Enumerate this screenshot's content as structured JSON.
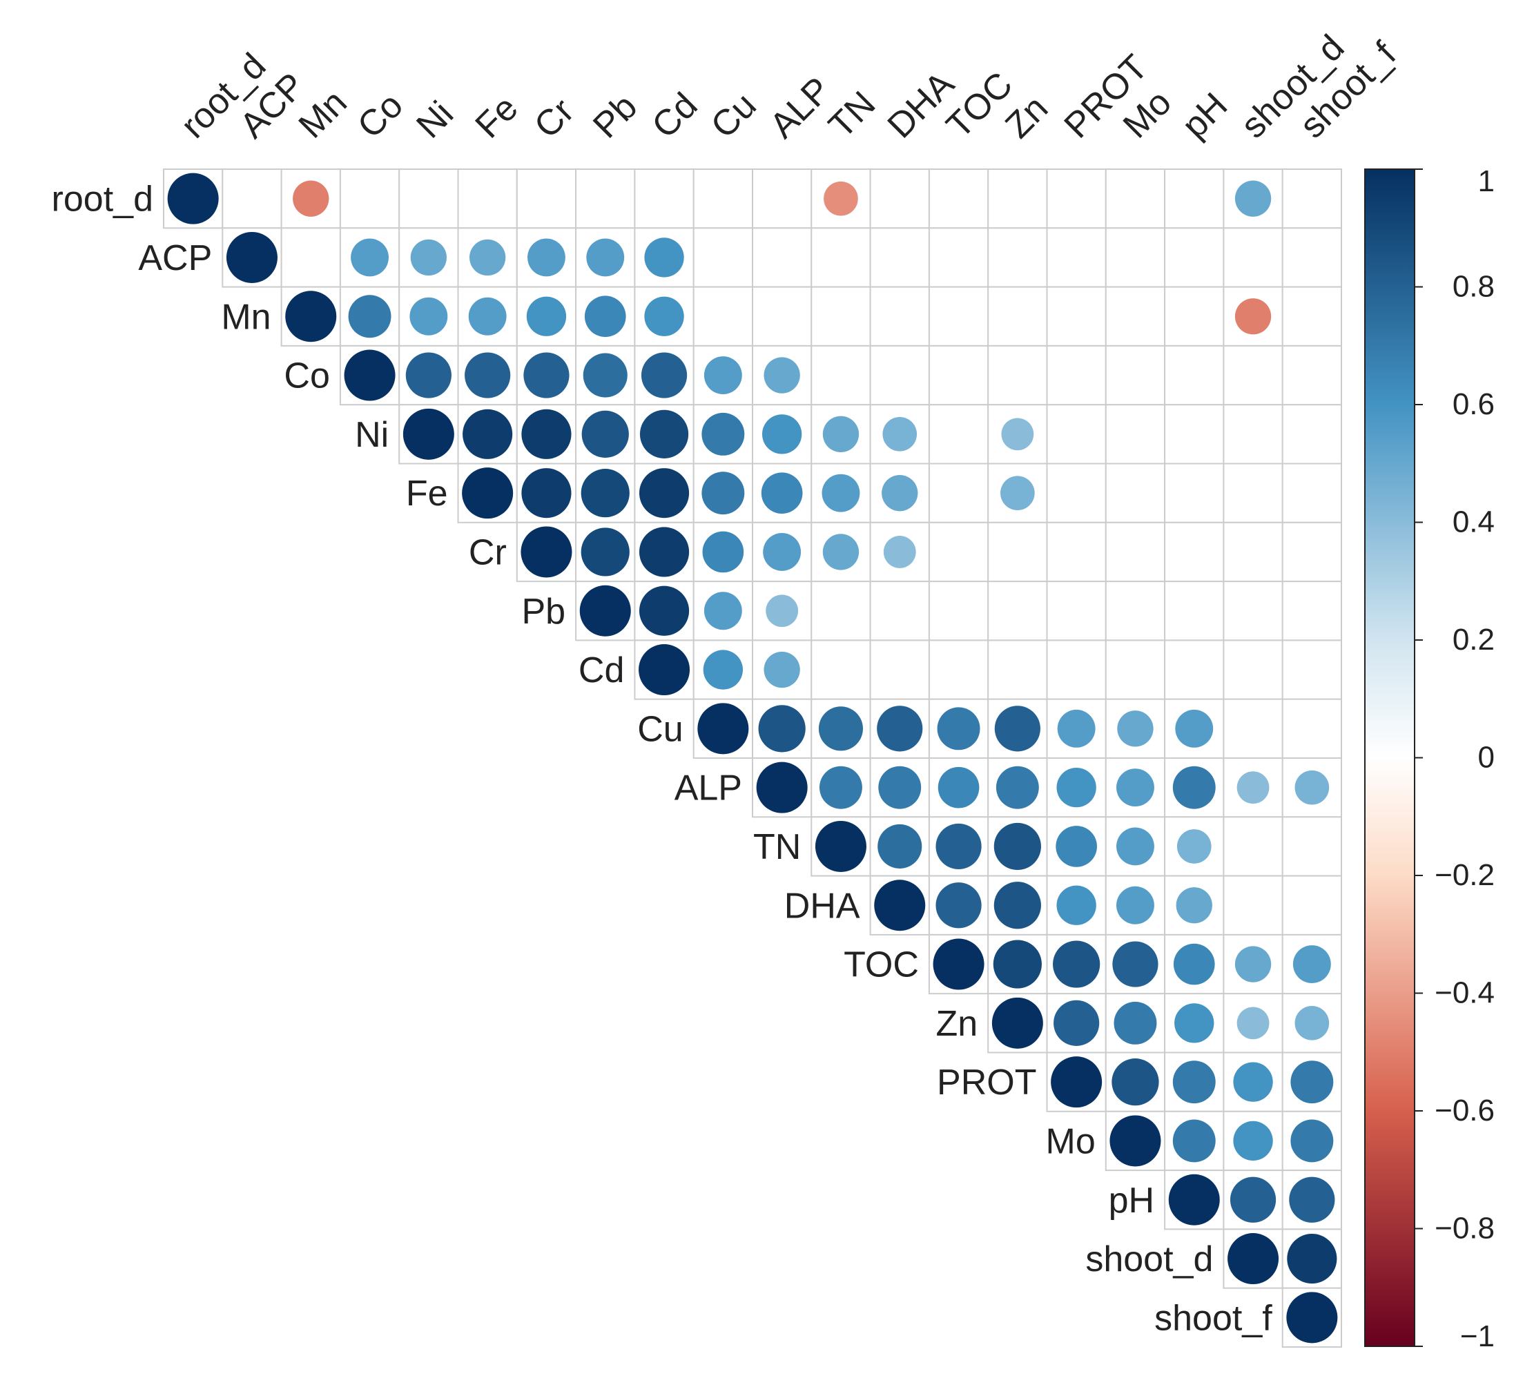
{
  "chart_data": {
    "type": "heatmap",
    "style": "corrplot-circle-upper",
    "variables": [
      "root_d",
      "ACP",
      "Mn",
      "Co",
      "Ni",
      "Fe",
      "Cr",
      "Pb",
      "Cd",
      "Cu",
      "ALP",
      "TN",
      "DHA",
      "TOC",
      "Zn",
      "PROT",
      "Mo",
      "pH",
      "shoot_d",
      "shoot_f"
    ],
    "values": [
      {
        "row": "root_d",
        "col": "root_d",
        "r": 1.0
      },
      {
        "row": "root_d",
        "col": "Mn",
        "r": -0.5
      },
      {
        "row": "root_d",
        "col": "TN",
        "r": -0.45
      },
      {
        "row": "root_d",
        "col": "shoot_d",
        "r": 0.5
      },
      {
        "row": "ACP",
        "col": "ACP",
        "r": 1.0
      },
      {
        "row": "ACP",
        "col": "Co",
        "r": 0.55
      },
      {
        "row": "ACP",
        "col": "Ni",
        "r": 0.5
      },
      {
        "row": "ACP",
        "col": "Fe",
        "r": 0.5
      },
      {
        "row": "ACP",
        "col": "Cr",
        "r": 0.55
      },
      {
        "row": "ACP",
        "col": "Pb",
        "r": 0.55
      },
      {
        "row": "ACP",
        "col": "Cd",
        "r": 0.6
      },
      {
        "row": "Mn",
        "col": "Mn",
        "r": 1.0
      },
      {
        "row": "Mn",
        "col": "Co",
        "r": 0.7
      },
      {
        "row": "Mn",
        "col": "Ni",
        "r": 0.55
      },
      {
        "row": "Mn",
        "col": "Fe",
        "r": 0.55
      },
      {
        "row": "Mn",
        "col": "Cr",
        "r": 0.6
      },
      {
        "row": "Mn",
        "col": "Pb",
        "r": 0.65
      },
      {
        "row": "Mn",
        "col": "Cd",
        "r": 0.6
      },
      {
        "row": "Mn",
        "col": "shoot_d",
        "r": -0.5
      },
      {
        "row": "Co",
        "col": "Co",
        "r": 1.0
      },
      {
        "row": "Co",
        "col": "Ni",
        "r": 0.8
      },
      {
        "row": "Co",
        "col": "Fe",
        "r": 0.8
      },
      {
        "row": "Co",
        "col": "Cr",
        "r": 0.8
      },
      {
        "row": "Co",
        "col": "Pb",
        "r": 0.75
      },
      {
        "row": "Co",
        "col": "Cd",
        "r": 0.8
      },
      {
        "row": "Co",
        "col": "Cu",
        "r": 0.55
      },
      {
        "row": "Co",
        "col": "ALP",
        "r": 0.5
      },
      {
        "row": "Ni",
        "col": "Ni",
        "r": 1.0
      },
      {
        "row": "Ni",
        "col": "Fe",
        "r": 0.95
      },
      {
        "row": "Ni",
        "col": "Cr",
        "r": 0.95
      },
      {
        "row": "Ni",
        "col": "Pb",
        "r": 0.85
      },
      {
        "row": "Ni",
        "col": "Cd",
        "r": 0.9
      },
      {
        "row": "Ni",
        "col": "Cu",
        "r": 0.7
      },
      {
        "row": "Ni",
        "col": "ALP",
        "r": 0.6
      },
      {
        "row": "Ni",
        "col": "TN",
        "r": 0.5
      },
      {
        "row": "Ni",
        "col": "DHA",
        "r": 0.45
      },
      {
        "row": "Ni",
        "col": "Zn",
        "r": 0.4
      },
      {
        "row": "Fe",
        "col": "Fe",
        "r": 1.0
      },
      {
        "row": "Fe",
        "col": "Cr",
        "r": 0.95
      },
      {
        "row": "Fe",
        "col": "Pb",
        "r": 0.9
      },
      {
        "row": "Fe",
        "col": "Cd",
        "r": 0.95
      },
      {
        "row": "Fe",
        "col": "Cu",
        "r": 0.7
      },
      {
        "row": "Fe",
        "col": "ALP",
        "r": 0.65
      },
      {
        "row": "Fe",
        "col": "TN",
        "r": 0.55
      },
      {
        "row": "Fe",
        "col": "DHA",
        "r": 0.5
      },
      {
        "row": "Fe",
        "col": "Zn",
        "r": 0.45
      },
      {
        "row": "Cr",
        "col": "Cr",
        "r": 1.0
      },
      {
        "row": "Cr",
        "col": "Pb",
        "r": 0.9
      },
      {
        "row": "Cr",
        "col": "Cd",
        "r": 0.95
      },
      {
        "row": "Cr",
        "col": "Cu",
        "r": 0.65
      },
      {
        "row": "Cr",
        "col": "ALP",
        "r": 0.55
      },
      {
        "row": "Cr",
        "col": "TN",
        "r": 0.5
      },
      {
        "row": "Cr",
        "col": "DHA",
        "r": 0.4
      },
      {
        "row": "Pb",
        "col": "Pb",
        "r": 1.0
      },
      {
        "row": "Pb",
        "col": "Cd",
        "r": 0.95
      },
      {
        "row": "Pb",
        "col": "Cu",
        "r": 0.55
      },
      {
        "row": "Pb",
        "col": "ALP",
        "r": 0.4
      },
      {
        "row": "Cd",
        "col": "Cd",
        "r": 1.0
      },
      {
        "row": "Cd",
        "col": "Cu",
        "r": 0.6
      },
      {
        "row": "Cd",
        "col": "ALP",
        "r": 0.5
      },
      {
        "row": "Cu",
        "col": "Cu",
        "r": 1.0
      },
      {
        "row": "Cu",
        "col": "ALP",
        "r": 0.85
      },
      {
        "row": "Cu",
        "col": "TN",
        "r": 0.75
      },
      {
        "row": "Cu",
        "col": "DHA",
        "r": 0.8
      },
      {
        "row": "Cu",
        "col": "TOC",
        "r": 0.7
      },
      {
        "row": "Cu",
        "col": "Zn",
        "r": 0.8
      },
      {
        "row": "Cu",
        "col": "PROT",
        "r": 0.55
      },
      {
        "row": "Cu",
        "col": "Mo",
        "r": 0.5
      },
      {
        "row": "Cu",
        "col": "pH",
        "r": 0.55
      },
      {
        "row": "ALP",
        "col": "ALP",
        "r": 1.0
      },
      {
        "row": "ALP",
        "col": "TN",
        "r": 0.7
      },
      {
        "row": "ALP",
        "col": "DHA",
        "r": 0.7
      },
      {
        "row": "ALP",
        "col": "TOC",
        "r": 0.65
      },
      {
        "row": "ALP",
        "col": "Zn",
        "r": 0.7
      },
      {
        "row": "ALP",
        "col": "PROT",
        "r": 0.6
      },
      {
        "row": "ALP",
        "col": "Mo",
        "r": 0.55
      },
      {
        "row": "ALP",
        "col": "pH",
        "r": 0.7
      },
      {
        "row": "ALP",
        "col": "shoot_d",
        "r": 0.4
      },
      {
        "row": "ALP",
        "col": "shoot_f",
        "r": 0.45
      },
      {
        "row": "TN",
        "col": "TN",
        "r": 1.0
      },
      {
        "row": "TN",
        "col": "DHA",
        "r": 0.75
      },
      {
        "row": "TN",
        "col": "TOC",
        "r": 0.8
      },
      {
        "row": "TN",
        "col": "Zn",
        "r": 0.85
      },
      {
        "row": "TN",
        "col": "PROT",
        "r": 0.65
      },
      {
        "row": "TN",
        "col": "Mo",
        "r": 0.55
      },
      {
        "row": "TN",
        "col": "pH",
        "r": 0.45
      },
      {
        "row": "DHA",
        "col": "DHA",
        "r": 1.0
      },
      {
        "row": "DHA",
        "col": "TOC",
        "r": 0.8
      },
      {
        "row": "DHA",
        "col": "Zn",
        "r": 0.85
      },
      {
        "row": "DHA",
        "col": "PROT",
        "r": 0.6
      },
      {
        "row": "DHA",
        "col": "Mo",
        "r": 0.55
      },
      {
        "row": "DHA",
        "col": "pH",
        "r": 0.5
      },
      {
        "row": "TOC",
        "col": "TOC",
        "r": 1.0
      },
      {
        "row": "TOC",
        "col": "Zn",
        "r": 0.9
      },
      {
        "row": "TOC",
        "col": "PROT",
        "r": 0.85
      },
      {
        "row": "TOC",
        "col": "Mo",
        "r": 0.8
      },
      {
        "row": "TOC",
        "col": "pH",
        "r": 0.65
      },
      {
        "row": "TOC",
        "col": "shoot_d",
        "r": 0.5
      },
      {
        "row": "TOC",
        "col": "shoot_f",
        "r": 0.55
      },
      {
        "row": "Zn",
        "col": "Zn",
        "r": 1.0
      },
      {
        "row": "Zn",
        "col": "PROT",
        "r": 0.8
      },
      {
        "row": "Zn",
        "col": "Mo",
        "r": 0.7
      },
      {
        "row": "Zn",
        "col": "pH",
        "r": 0.6
      },
      {
        "row": "Zn",
        "col": "shoot_d",
        "r": 0.4
      },
      {
        "row": "Zn",
        "col": "shoot_f",
        "r": 0.45
      },
      {
        "row": "PROT",
        "col": "PROT",
        "r": 1.0
      },
      {
        "row": "PROT",
        "col": "Mo",
        "r": 0.85
      },
      {
        "row": "PROT",
        "col": "pH",
        "r": 0.7
      },
      {
        "row": "PROT",
        "col": "shoot_d",
        "r": 0.6
      },
      {
        "row": "PROT",
        "col": "shoot_f",
        "r": 0.7
      },
      {
        "row": "Mo",
        "col": "Mo",
        "r": 1.0
      },
      {
        "row": "Mo",
        "col": "pH",
        "r": 0.7
      },
      {
        "row": "Mo",
        "col": "shoot_d",
        "r": 0.6
      },
      {
        "row": "Mo",
        "col": "shoot_f",
        "r": 0.7
      },
      {
        "row": "pH",
        "col": "pH",
        "r": 1.0
      },
      {
        "row": "pH",
        "col": "shoot_d",
        "r": 0.8
      },
      {
        "row": "pH",
        "col": "shoot_f",
        "r": 0.8
      },
      {
        "row": "shoot_d",
        "col": "shoot_d",
        "r": 1.0
      },
      {
        "row": "shoot_d",
        "col": "shoot_f",
        "r": 0.95
      },
      {
        "row": "shoot_f",
        "col": "shoot_f",
        "r": 1.0
      }
    ],
    "colorbar": {
      "range": [
        -1,
        1
      ],
      "ticks": [
        1,
        0.8,
        0.6,
        0.4,
        0.2,
        0,
        -0.2,
        -0.4,
        -0.6,
        -0.8,
        -1
      ],
      "tick_labels": [
        "1",
        "0.8",
        "0.6",
        "0.4",
        "0.2",
        "0",
        "−0.2",
        "−0.4",
        "−0.6",
        "−0.8",
        "−1"
      ]
    },
    "colors": {
      "neg_strong": "#67001F",
      "neg_mid": "#D6604D",
      "neg_light": "#FDDBC7",
      "zero": "#FFFFFF",
      "pos_light": "#D1E5F0",
      "pos_mid": "#4393C3",
      "pos_strong": "#053061",
      "grid": "#CCCCCC"
    }
  }
}
